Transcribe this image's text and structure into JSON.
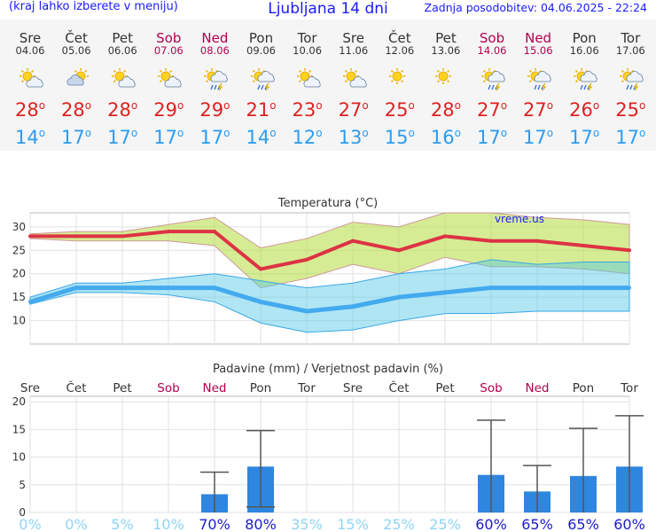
{
  "header": {
    "left_note": "(kraj lahko izberete v meniju)",
    "title": "Ljubljana 14 dni",
    "updated": "Zadnja posodobitev: 04.06.2025 - 22:24"
  },
  "days": [
    {
      "name": "Sre",
      "date": "04.06",
      "weekend": false,
      "icon": "sun-cloud-icon",
      "max": "28",
      "min": "14"
    },
    {
      "name": "Čet",
      "date": "05.06",
      "weekend": false,
      "icon": "cloud-sun-icon",
      "max": "28",
      "min": "17"
    },
    {
      "name": "Pet",
      "date": "06.06",
      "weekend": false,
      "icon": "sun-cloud-icon",
      "max": "28",
      "min": "17"
    },
    {
      "name": "Sob",
      "date": "07.06",
      "weekend": true,
      "icon": "sun-cloud-icon",
      "max": "29",
      "min": "17"
    },
    {
      "name": "Ned",
      "date": "08.06",
      "weekend": true,
      "icon": "storm-icon",
      "max": "29",
      "min": "17"
    },
    {
      "name": "Pon",
      "date": "09.06",
      "weekend": false,
      "icon": "storm-icon",
      "max": "21",
      "min": "14"
    },
    {
      "name": "Tor",
      "date": "10.06",
      "weekend": false,
      "icon": "sun-cloud-icon",
      "max": "23",
      "min": "12"
    },
    {
      "name": "Sre",
      "date": "11.06",
      "weekend": false,
      "icon": "sun-cloud-icon",
      "max": "27",
      "min": "13"
    },
    {
      "name": "Čet",
      "date": "12.06",
      "weekend": false,
      "icon": "sun-icon",
      "max": "25",
      "min": "15"
    },
    {
      "name": "Pet",
      "date": "13.06",
      "weekend": false,
      "icon": "sun-icon",
      "max": "28",
      "min": "16"
    },
    {
      "name": "Sob",
      "date": "14.06",
      "weekend": true,
      "icon": "storm-icon",
      "max": "27",
      "min": "17"
    },
    {
      "name": "Ned",
      "date": "15.06",
      "weekend": true,
      "icon": "storm-icon",
      "max": "27",
      "min": "17"
    },
    {
      "name": "Pon",
      "date": "16.06",
      "weekend": false,
      "icon": "storm-icon",
      "max": "26",
      "min": "17"
    },
    {
      "name": "Tor",
      "date": "17.06",
      "weekend": false,
      "icon": "storm-icon",
      "max": "25",
      "min": "17"
    }
  ],
  "degree_symbol": "o",
  "colors": {
    "max": "#dd2222",
    "min": "#2b9cf3",
    "weekend": "#b0004f",
    "text": "#333333",
    "precip_bar": "#2e86de",
    "prob_low": "#8fd4f5",
    "prob_high": "#1a1acc"
  },
  "chart_data": [
    {
      "type": "line",
      "title": "Temperatura (°C)",
      "watermark": "vreme.us",
      "ylim": [
        5,
        33
      ],
      "yticks": [
        10,
        15,
        20,
        25,
        30
      ],
      "series": [
        {
          "values": [
            28,
            28,
            28,
            29,
            29,
            21,
            23,
            27,
            25,
            28,
            27,
            27,
            26,
            25
          ]
        },
        {
          "values": [
            14,
            17,
            17,
            17,
            17,
            14,
            12,
            13,
            15,
            16,
            17,
            17,
            17,
            17
          ]
        },
        {
          "values": [
            28.5,
            29,
            29,
            30.5,
            32,
            25.5,
            27.5,
            31,
            30,
            33,
            33,
            32,
            31.5,
            30.5
          ]
        },
        {
          "values": [
            27.5,
            27,
            27,
            27,
            26,
            17,
            19,
            22,
            20,
            23.5,
            21.5,
            21.5,
            21,
            20
          ]
        },
        {
          "values": [
            15,
            18,
            18,
            19,
            20,
            18.5,
            17,
            18,
            20,
            21,
            23,
            22,
            22.5,
            22.5
          ]
        },
        {
          "values": [
            13.5,
            16,
            16,
            15.5,
            14,
            9.5,
            7.5,
            8,
            10,
            11.5,
            11.5,
            12,
            12,
            12
          ]
        }
      ],
      "grid": true
    },
    {
      "type": "bar",
      "title": "Padavine (mm) / Verjetnost padavin (%)",
      "ylim": [
        0,
        21
      ],
      "yticks": [
        0,
        5,
        10,
        15,
        20
      ],
      "categories": [
        "Sre",
        "Čet",
        "Pet",
        "Sob",
        "Ned",
        "Pon",
        "Tor",
        "Sre",
        "Čet",
        "Pet",
        "Sob",
        "Ned",
        "Pon",
        "Tor"
      ],
      "values": [
        0,
        0,
        0,
        0,
        3.3,
        8.3,
        0,
        0,
        0,
        0,
        6.8,
        3.8,
        6.6,
        8.3
      ],
      "err_low": [
        0,
        0,
        0,
        0,
        0,
        1.0,
        0,
        0,
        0,
        0,
        0,
        0,
        0,
        0
      ],
      "err_high": [
        0,
        0,
        0,
        0,
        7.3,
        14.8,
        0,
        0,
        0,
        0,
        16.7,
        8.5,
        15.2,
        17.5
      ],
      "probability": [
        "0%",
        "0%",
        "5%",
        "10%",
        "70%",
        "80%",
        "35%",
        "15%",
        "25%",
        "25%",
        "60%",
        "65%",
        "65%",
        "60%"
      ],
      "probability_values": [
        0,
        0,
        5,
        10,
        70,
        80,
        35,
        15,
        25,
        25,
        60,
        65,
        65,
        60
      ],
      "grid": true
    }
  ]
}
